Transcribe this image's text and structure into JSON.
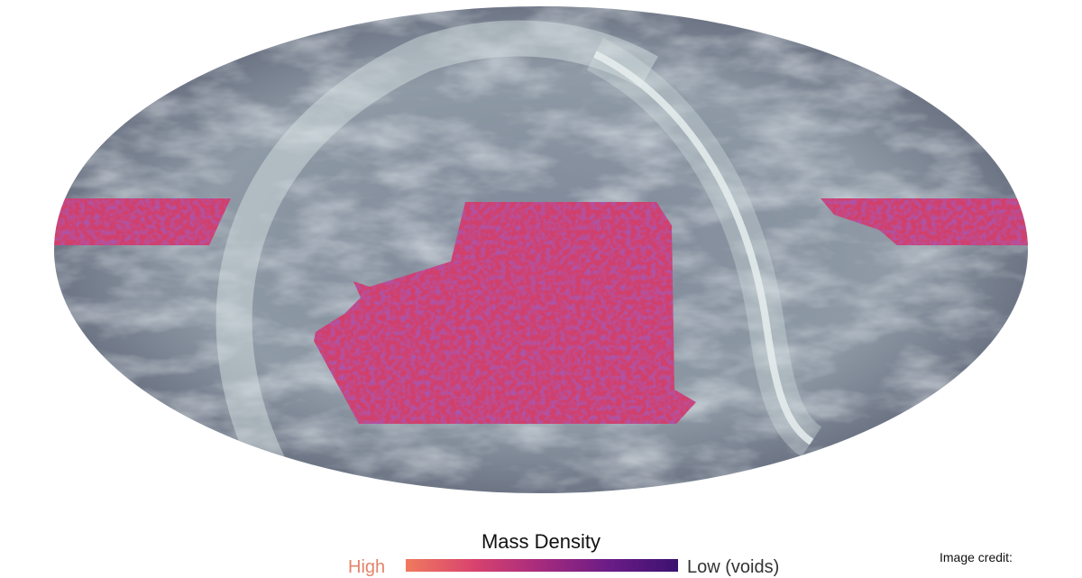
{
  "legend": {
    "title": "Mass Density",
    "high_label": "High",
    "low_label": "Low (voids)",
    "gradient_colors": [
      "#f07a5e",
      "#d8436e",
      "#a52a7e",
      "#6a1c86",
      "#3c1170"
    ]
  },
  "credit": {
    "label": "Image credit:"
  },
  "colors": {
    "sky_background": "#5d6477",
    "dust_highlight": "#d9e6e6",
    "mass_map": "#c8386e"
  }
}
